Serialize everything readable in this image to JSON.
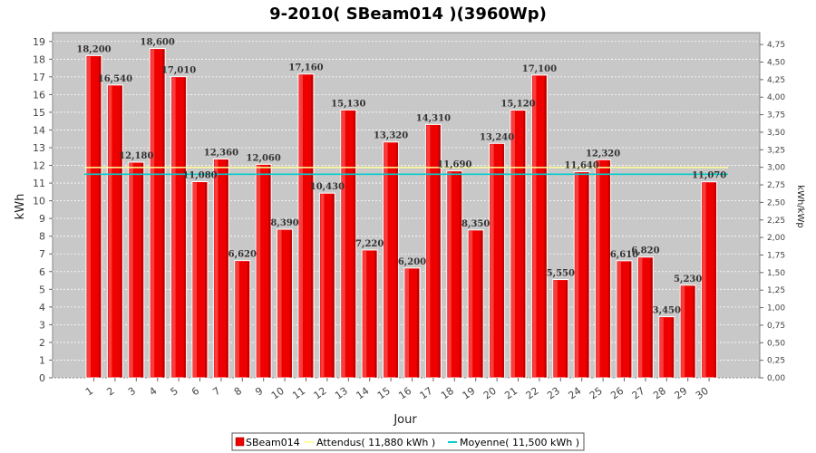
{
  "chart_data": {
    "type": "bar",
    "title": "9-2010( SBeam014 )(3960Wp)",
    "xlabel": "Jour",
    "ylabel": "kWh",
    "y2label": "kWh/kWp",
    "ylim": [
      0,
      19.5
    ],
    "y2lim": [
      0,
      4.92
    ],
    "categories": [
      "1",
      "2",
      "3",
      "4",
      "5",
      "6",
      "7",
      "8",
      "9",
      "10",
      "11",
      "12",
      "13",
      "14",
      "15",
      "16",
      "17",
      "18",
      "19",
      "20",
      "21",
      "22",
      "23",
      "24",
      "25",
      "26",
      "27",
      "28",
      "29",
      "30"
    ],
    "series": [
      {
        "name": "SBeam014",
        "values": [
          18.2,
          16.54,
          12.18,
          18.6,
          17.01,
          11.08,
          12.36,
          6.62,
          12.06,
          8.39,
          17.16,
          10.43,
          15.13,
          7.22,
          13.32,
          6.2,
          14.31,
          11.69,
          8.35,
          13.24,
          15.12,
          17.1,
          5.55,
          11.64,
          12.32,
          6.61,
          6.82,
          3.45,
          5.23,
          11.07
        ],
        "labels": [
          "18,200",
          "16,540",
          "12,180",
          "18,600",
          "17,010",
          "11,080",
          "12,360",
          "6,620",
          "12,060",
          "8,390",
          "17,160",
          "10,430",
          "15,130",
          "7,220",
          "13,320",
          "6,200",
          "14,310",
          "11,690",
          "8,350",
          "13,240",
          "15,120",
          "17,100",
          "5,550",
          "11,640",
          "12,320",
          "6,610",
          "6,820",
          "3,450",
          "5,230",
          "11,070"
        ],
        "color": "#ee0000"
      }
    ],
    "lines": [
      {
        "name": "Attendus( 11,880 kWh )",
        "value": 11.88,
        "color": "#ffff99"
      },
      {
        "name": "Moyenne( 11,500 kWh )",
        "value": 11.5,
        "color": "#00cccc"
      }
    ],
    "yticks": [
      "0",
      "1",
      "2",
      "3",
      "4",
      "5",
      "6",
      "7",
      "8",
      "9",
      "10",
      "11",
      "12",
      "13",
      "14",
      "15",
      "16",
      "17",
      "18",
      "19"
    ],
    "y2ticks": [
      "0,00",
      "0,25",
      "0,50",
      "0,75",
      "1,00",
      "1,25",
      "1,50",
      "1,75",
      "2,00",
      "2,25",
      "2,50",
      "2,75",
      "3,00",
      "3,25",
      "3,50",
      "3,75",
      "4,00",
      "4,25",
      "4,50",
      "4,75"
    ],
    "grid": true,
    "legend_position": "bottom",
    "plot_background": "#c8c8c8"
  }
}
